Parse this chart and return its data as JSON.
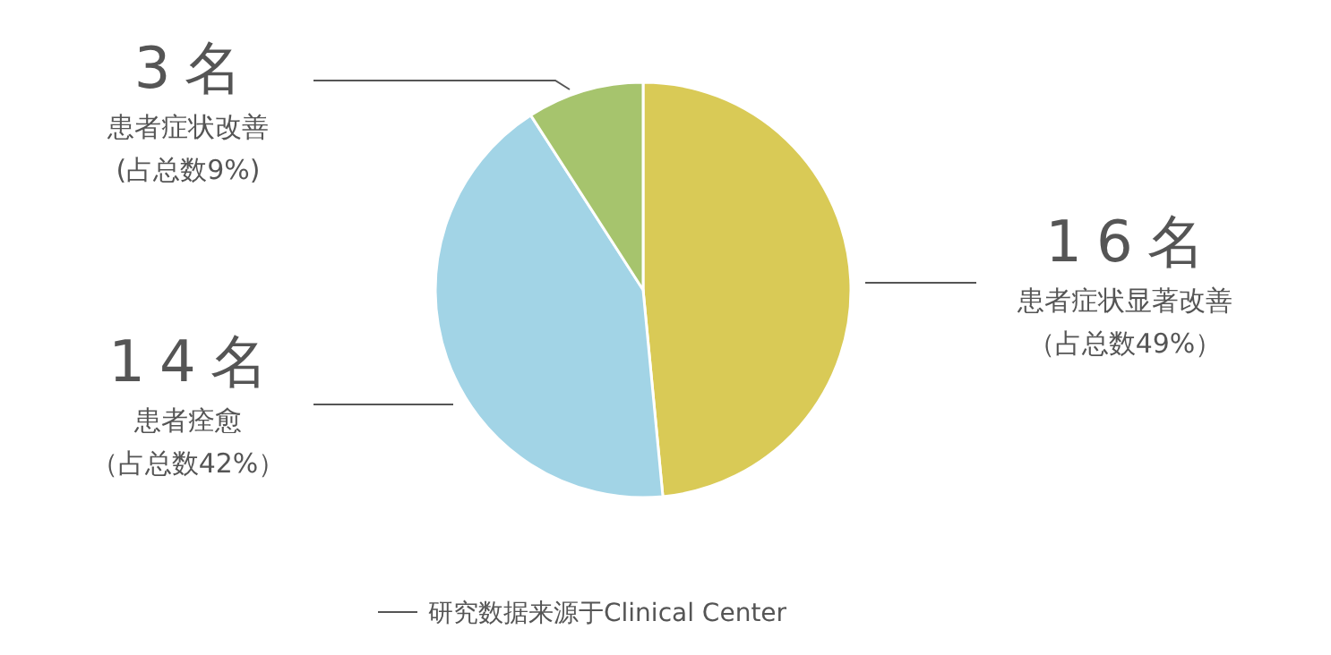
{
  "chart_data": {
    "type": "pie",
    "categories": [
      "患者症状显著改善",
      "患者痊愈",
      "患者症状改善"
    ],
    "values": [
      16,
      14,
      3
    ],
    "colors": [
      "#d9ca56",
      "#a2d4e6",
      "#a6c46d"
    ],
    "value_labels": [
      "16名",
      "14名",
      "3名"
    ],
    "annotations": [
      "（占总数49%）",
      "（占总数42%）",
      "(占总数9%)",
      "研究数据来源于Clinical Center"
    ]
  }
}
